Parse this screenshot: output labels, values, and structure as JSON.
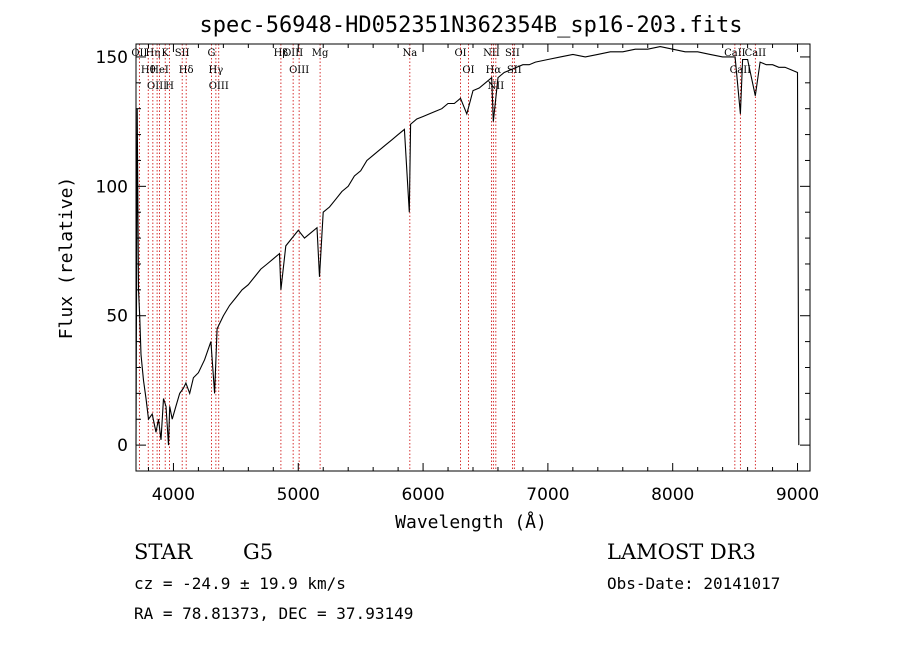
{
  "chart_data": {
    "type": "line",
    "title": "spec-56948-HD052351N362354B_sp16-203.fits",
    "xlabel": "Wavelength (Å)",
    "ylabel": "Flux (relative)",
    "xlim": [
      3700,
      9100
    ],
    "ylim": [
      -10,
      155
    ],
    "xticks": [
      4000,
      5000,
      6000,
      7000,
      8000,
      9000
    ],
    "yticks": [
      0,
      50,
      100,
      150
    ],
    "line_color": "#000000",
    "marker_color": "#cc0000",
    "series": [
      {
        "name": "flux",
        "x": [
          3700,
          3710,
          3720,
          3730,
          3740,
          3760,
          3780,
          3800,
          3830,
          3860,
          3880,
          3900,
          3920,
          3940,
          3960,
          3970,
          3990,
          4020,
          4050,
          4080,
          4100,
          4130,
          4160,
          4200,
          4250,
          4300,
          4330,
          4350,
          4400,
          4450,
          4500,
          4550,
          4600,
          4650,
          4700,
          4750,
          4800,
          4850,
          4861,
          4900,
          4950,
          5000,
          5050,
          5100,
          5150,
          5170,
          5200,
          5250,
          5300,
          5350,
          5400,
          5450,
          5500,
          5550,
          5600,
          5650,
          5700,
          5750,
          5800,
          5850,
          5890,
          5900,
          5950,
          6000,
          6050,
          6100,
          6150,
          6200,
          6250,
          6300,
          6350,
          6400,
          6450,
          6500,
          6550,
          6563,
          6600,
          6650,
          6700,
          6750,
          6800,
          6850,
          6900,
          7000,
          7100,
          7200,
          7300,
          7400,
          7500,
          7600,
          7700,
          7800,
          7900,
          8000,
          8100,
          8200,
          8300,
          8400,
          8500,
          8542,
          8560,
          8600,
          8662,
          8700,
          8750,
          8800,
          8850,
          8900,
          8950,
          9000,
          9010
        ],
        "y": [
          0,
          130,
          60,
          50,
          35,
          25,
          18,
          10,
          12,
          5,
          10,
          2,
          18,
          15,
          0,
          15,
          10,
          15,
          20,
          22,
          24,
          20,
          26,
          28,
          33,
          40,
          20,
          45,
          50,
          54,
          57,
          60,
          62,
          65,
          68,
          70,
          72,
          74,
          60,
          77,
          80,
          83,
          80,
          82,
          84,
          65,
          90,
          92,
          95,
          98,
          100,
          104,
          106,
          110,
          112,
          114,
          116,
          118,
          120,
          122,
          90,
          124,
          126,
          127,
          128,
          129,
          130,
          132,
          132,
          134,
          128,
          137,
          138,
          140,
          142,
          125,
          142,
          144,
          145,
          146,
          147,
          147,
          148,
          149,
          150,
          151,
          150,
          151,
          152,
          152,
          153,
          153,
          154,
          153,
          152,
          152,
          151,
          150,
          150,
          128,
          149,
          149,
          135,
          148,
          147,
          147,
          146,
          146,
          145,
          144,
          0
        ]
      }
    ],
    "lines": [
      {
        "name": "Hθ",
        "wave": 3798
      },
      {
        "name": "OII",
        "wave": 3727
      },
      {
        "name": "OIII",
        "wave": 3869
      },
      {
        "name": "HeI",
        "wave": 3889
      },
      {
        "name": "Hη",
        "wave": 3835
      },
      {
        "name": "K",
        "wave": 3934
      },
      {
        "name": "H",
        "wave": 3969
      },
      {
        "name": "SII",
        "wave": 4070
      },
      {
        "name": "Hδ",
        "wave": 4102
      },
      {
        "name": "OIII",
        "wave": 4363
      },
      {
        "name": "Hγ",
        "wave": 4340
      },
      {
        "name": "G",
        "wave": 4305
      },
      {
        "name": "Hβ",
        "wave": 4861
      },
      {
        "name": "OIII",
        "wave": 4959
      },
      {
        "name": "OIII",
        "wave": 5007
      },
      {
        "name": "Mg",
        "wave": 5175
      },
      {
        "name": "Na",
        "wave": 5894
      },
      {
        "name": "OI",
        "wave": 6300
      },
      {
        "name": "OI",
        "wave": 6364
      },
      {
        "name": "Hα",
        "wave": 6563
      },
      {
        "name": "NII",
        "wave": 6548
      },
      {
        "name": "NII",
        "wave": 6583
      },
      {
        "name": "SII",
        "wave": 6716
      },
      {
        "name": "SII",
        "wave": 6731
      },
      {
        "name": "CaII",
        "wave": 8498
      },
      {
        "name": "CaII",
        "wave": 8542
      },
      {
        "name": "CaII",
        "wave": 8662
      }
    ]
  },
  "info": {
    "object_class": "STAR",
    "subclass": "G5",
    "survey": "LAMOST DR3",
    "cz": "cz = -24.9 ± 19.9 km/s",
    "obs_date": "Obs-Date: 20141017",
    "coords": "RA =  78.81373, DEC =  37.93149"
  }
}
